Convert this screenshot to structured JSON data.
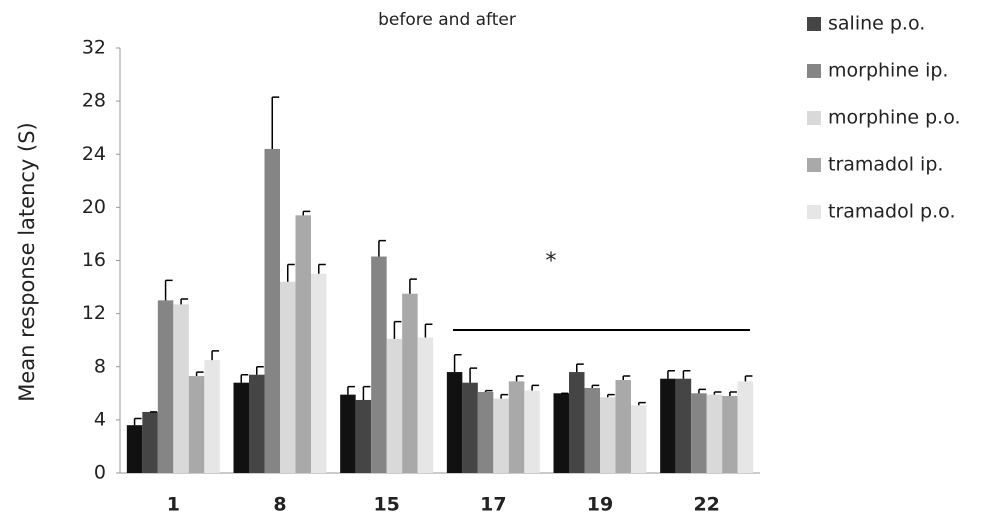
{
  "chart_data": {
    "type": "bar",
    "title": "before and after",
    "y_label": "Mean response latency (S)",
    "categories": [
      "1",
      "8",
      "15",
      "17",
      "19",
      "22"
    ],
    "ylim": [
      0,
      32
    ],
    "yticks": [
      0,
      4,
      8,
      12,
      16,
      20,
      24,
      28,
      32
    ],
    "legend": "right",
    "annotation": "*",
    "series": [
      {
        "color": "#111111",
        "values": [
          3.6,
          6.8,
          5.9,
          7.6,
          6.0,
          7.1
        ],
        "errors": [
          0.5,
          0.6,
          0.6,
          1.3,
          0.0,
          0.6
        ]
      },
      {
        "name": "saline p.o.",
        "color": "#454545",
        "values": [
          4.6,
          7.4,
          5.5,
          6.8,
          7.6,
          7.1
        ],
        "errors": [
          0.0,
          0.6,
          1.0,
          1.1,
          0.6,
          0.6
        ]
      },
      {
        "name": "morphine ip.",
        "color": "#858585",
        "values": [
          13.0,
          24.4,
          16.3,
          6.1,
          6.4,
          6.0
        ],
        "errors": [
          1.5,
          3.9,
          1.2,
          0.1,
          0.2,
          0.3
        ]
      },
      {
        "name": "morphine p.o.",
        "color": "#d9d9d9",
        "values": [
          12.7,
          14.4,
          10.1,
          5.6,
          5.7,
          5.9
        ],
        "errors": [
          0.4,
          1.3,
          1.3,
          0.3,
          0.2,
          0.2
        ]
      },
      {
        "name": "tramadol ip.",
        "color": "#a9a9a9",
        "values": [
          7.3,
          19.4,
          13.5,
          6.9,
          7.0,
          5.8
        ],
        "errors": [
          0.3,
          0.3,
          1.1,
          0.4,
          0.3,
          0.3
        ]
      },
      {
        "name": "tramadol p.o.",
        "color": "#e6e6e6",
        "values": [
          8.5,
          15.0,
          10.2,
          6.2,
          5.1,
          6.9
        ],
        "errors": [
          0.7,
          0.7,
          1.0,
          0.4,
          0.2,
          0.4
        ]
      }
    ]
  }
}
